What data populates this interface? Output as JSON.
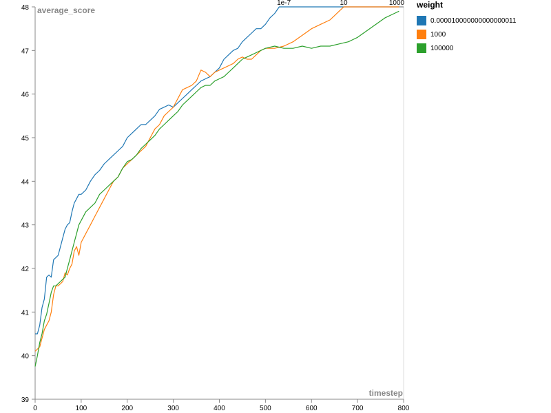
{
  "chart_data": {
    "type": "line",
    "xlabel": "timestep",
    "ylabel": "average_score",
    "xlim": [
      0,
      800
    ],
    "ylim": [
      39,
      48
    ],
    "xticks": [
      0,
      100,
      200,
      300,
      400,
      500,
      600,
      700,
      800
    ],
    "yticks": [
      39,
      40,
      41,
      42,
      43,
      44,
      45,
      46,
      47,
      48
    ],
    "grid": false,
    "legend_title": "weight",
    "legend_position": "right",
    "annotations": [
      {
        "text": "1e-7",
        "x": 540,
        "y": 48
      },
      {
        "text": "10",
        "x": 670,
        "y": 48
      },
      {
        "text": "1000",
        "x": 785,
        "y": 48
      }
    ],
    "series": [
      {
        "name": "0.000010000000000000011",
        "color": "#1f77b4",
        "x": [
          0,
          5,
          10,
          15,
          20,
          25,
          30,
          35,
          40,
          45,
          50,
          55,
          60,
          65,
          70,
          75,
          80,
          85,
          90,
          95,
          100,
          110,
          120,
          130,
          140,
          150,
          160,
          170,
          180,
          190,
          200,
          210,
          220,
          230,
          240,
          250,
          260,
          270,
          280,
          290,
          300,
          310,
          320,
          330,
          340,
          350,
          360,
          370,
          380,
          390,
          400,
          410,
          420,
          430,
          440,
          450,
          460,
          470,
          480,
          490,
          500,
          510,
          520,
          530,
          540,
          560,
          600,
          650,
          700,
          750,
          790
        ],
        "y": [
          40.5,
          40.5,
          40.7,
          41.1,
          41.3,
          41.8,
          41.85,
          41.8,
          42.2,
          42.25,
          42.3,
          42.5,
          42.7,
          42.9,
          43.0,
          43.05,
          43.3,
          43.5,
          43.6,
          43.7,
          43.7,
          43.8,
          44.0,
          44.15,
          44.25,
          44.4,
          44.5,
          44.6,
          44.7,
          44.8,
          45.0,
          45.1,
          45.2,
          45.3,
          45.3,
          45.4,
          45.5,
          45.65,
          45.7,
          45.75,
          45.7,
          45.8,
          45.9,
          46.0,
          46.1,
          46.2,
          46.3,
          46.35,
          46.4,
          46.5,
          46.6,
          46.8,
          46.9,
          47.0,
          47.05,
          47.2,
          47.3,
          47.4,
          47.5,
          47.5,
          47.6,
          47.75,
          47.85,
          48.0,
          48.0,
          48.0,
          48.0,
          48.0,
          48.0,
          48.0,
          48.0
        ]
      },
      {
        "name": "1000",
        "color": "#ff7f0e",
        "x": [
          0,
          5,
          10,
          15,
          20,
          25,
          30,
          35,
          40,
          45,
          50,
          55,
          60,
          65,
          70,
          75,
          80,
          85,
          90,
          95,
          100,
          110,
          120,
          130,
          140,
          150,
          160,
          170,
          180,
          190,
          200,
          210,
          220,
          230,
          240,
          250,
          260,
          270,
          280,
          290,
          300,
          310,
          320,
          330,
          340,
          350,
          360,
          370,
          380,
          390,
          400,
          410,
          420,
          430,
          440,
          450,
          460,
          470,
          480,
          490,
          500,
          520,
          540,
          560,
          580,
          600,
          620,
          640,
          650,
          660,
          670,
          700,
          750,
          790
        ],
        "y": [
          40.1,
          40.15,
          40.2,
          40.4,
          40.6,
          40.7,
          40.8,
          41.0,
          41.4,
          41.6,
          41.6,
          41.65,
          41.7,
          41.9,
          41.85,
          42.0,
          42.1,
          42.4,
          42.5,
          42.3,
          42.6,
          42.8,
          43.0,
          43.2,
          43.4,
          43.6,
          43.8,
          44.0,
          44.1,
          44.3,
          44.4,
          44.5,
          44.6,
          44.7,
          44.8,
          45.0,
          45.2,
          45.3,
          45.5,
          45.6,
          45.7,
          45.9,
          46.1,
          46.15,
          46.2,
          46.3,
          46.55,
          46.5,
          46.4,
          46.5,
          46.55,
          46.6,
          46.65,
          46.7,
          46.8,
          46.85,
          46.8,
          46.8,
          46.9,
          47.0,
          47.05,
          47.05,
          47.1,
          47.2,
          47.35,
          47.5,
          47.6,
          47.7,
          47.8,
          47.9,
          48.0,
          48.0,
          48.0,
          48.0
        ]
      },
      {
        "name": "100000",
        "color": "#2ca02c",
        "x": [
          0,
          5,
          10,
          15,
          20,
          25,
          30,
          35,
          40,
          45,
          50,
          55,
          60,
          65,
          70,
          75,
          80,
          85,
          90,
          95,
          100,
          110,
          120,
          130,
          140,
          150,
          160,
          170,
          180,
          190,
          200,
          210,
          220,
          230,
          240,
          250,
          260,
          270,
          280,
          290,
          300,
          310,
          320,
          330,
          340,
          350,
          360,
          370,
          380,
          390,
          400,
          410,
          420,
          430,
          440,
          450,
          460,
          470,
          480,
          490,
          500,
          520,
          540,
          560,
          580,
          600,
          620,
          640,
          660,
          680,
          700,
          720,
          740,
          760,
          780,
          790
        ],
        "y": [
          39.75,
          40.0,
          40.3,
          40.5,
          40.8,
          40.95,
          41.2,
          41.45,
          41.6,
          41.6,
          41.65,
          41.7,
          41.75,
          41.8,
          42.0,
          42.2,
          42.4,
          42.6,
          42.8,
          43.0,
          43.1,
          43.3,
          43.4,
          43.5,
          43.7,
          43.8,
          43.9,
          44.0,
          44.1,
          44.3,
          44.45,
          44.5,
          44.6,
          44.75,
          44.85,
          44.95,
          45.05,
          45.2,
          45.3,
          45.4,
          45.5,
          45.6,
          45.75,
          45.85,
          45.95,
          46.05,
          46.15,
          46.2,
          46.2,
          46.3,
          46.35,
          46.4,
          46.5,
          46.6,
          46.7,
          46.8,
          46.85,
          46.9,
          46.95,
          47.0,
          47.05,
          47.1,
          47.05,
          47.05,
          47.1,
          47.05,
          47.1,
          47.1,
          47.15,
          47.2,
          47.3,
          47.45,
          47.6,
          47.75,
          47.85,
          47.9
        ]
      }
    ]
  }
}
